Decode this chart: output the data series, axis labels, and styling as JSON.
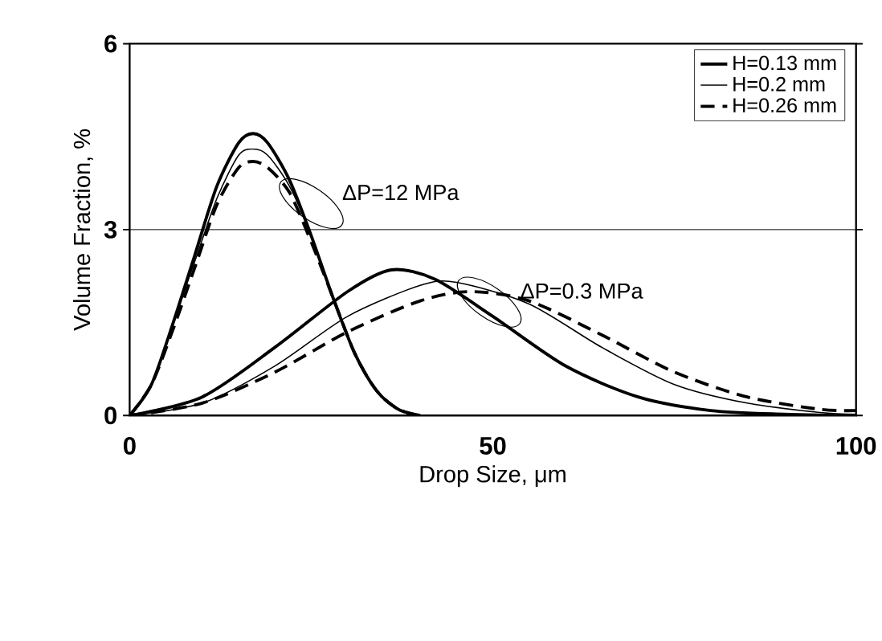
{
  "chart_data": {
    "type": "line",
    "xlabel": "Drop Size, μm",
    "ylabel": "Volume Fraction, %",
    "xlim": [
      0,
      100
    ],
    "ylim": [
      0,
      6
    ],
    "xticks": [
      0,
      50,
      100
    ],
    "yticks": [
      0,
      3,
      6
    ],
    "grid": "y",
    "legend": "top right",
    "annotations": [
      "ΔP=12 MPa",
      "ΔP=0.3 MPa"
    ],
    "series": [
      {
        "name": "H=0.13 mm",
        "color": "#000000",
        "line_style": "solid",
        "x": [
          0,
          3,
          6,
          9,
          12,
          15,
          17,
          19,
          22,
          25,
          28,
          31,
          34,
          37,
          40
        ],
        "values": [
          0,
          0.5,
          1.5,
          2.6,
          3.7,
          4.4,
          4.55,
          4.4,
          3.8,
          2.9,
          1.9,
          1.0,
          0.4,
          0.1,
          0
        ]
      },
      {
        "name": "H=0.2 mm",
        "color": "#000000",
        "line_style": "solid",
        "x": [
          0,
          3,
          6,
          9,
          12,
          15,
          17,
          19,
          22,
          25,
          28,
          31,
          34,
          37,
          40
        ],
        "values": [
          0,
          0.5,
          1.5,
          2.5,
          3.5,
          4.2,
          4.3,
          4.2,
          3.7,
          2.9,
          1.9,
          1.0,
          0.4,
          0.1,
          0
        ]
      },
      {
        "name": "H=0.26 mm",
        "color": "#000000",
        "line_style": "dashed",
        "x": [
          0,
          3,
          6,
          9,
          12,
          15,
          17,
          19,
          22,
          25,
          28,
          31,
          34,
          37,
          40
        ],
        "values": [
          0,
          0.5,
          1.4,
          2.4,
          3.4,
          4.0,
          4.1,
          4.0,
          3.6,
          2.8,
          1.9,
          1.0,
          0.4,
          0.1,
          0
        ]
      },
      {
        "color": "#000000",
        "line_style": "solid",
        "x": [
          0,
          10,
          20,
          30,
          36,
          42,
          50,
          60,
          70,
          80,
          90,
          100
        ],
        "values": [
          0,
          0.3,
          1.1,
          2.0,
          2.35,
          2.2,
          1.6,
          0.8,
          0.3,
          0.08,
          0.02,
          0
        ]
      },
      {
        "color": "#000000",
        "line_style": "solid",
        "x": [
          0,
          10,
          20,
          30,
          40,
          45,
          55,
          65,
          75,
          85,
          95,
          100
        ],
        "values": [
          0,
          0.2,
          0.8,
          1.6,
          2.1,
          2.15,
          1.8,
          1.1,
          0.5,
          0.2,
          0.05,
          0.02
        ]
      },
      {
        "color": "#000000",
        "line_style": "dashed",
        "x": [
          0,
          10,
          20,
          30,
          40,
          47,
          55,
          65,
          75,
          85,
          95,
          100
        ],
        "values": [
          0,
          0.2,
          0.7,
          1.35,
          1.85,
          2.0,
          1.85,
          1.3,
          0.7,
          0.3,
          0.1,
          0.08
        ]
      }
    ]
  }
}
